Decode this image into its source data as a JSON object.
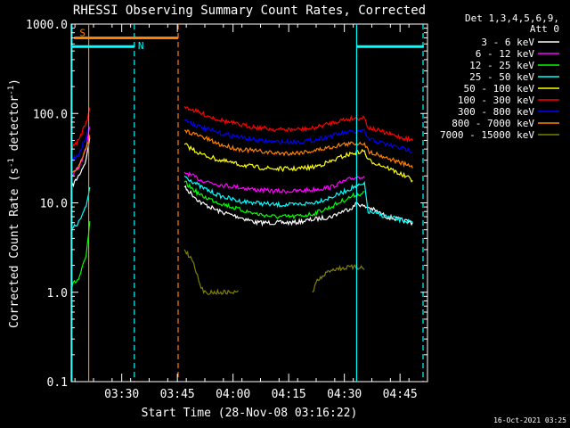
{
  "chart_data": {
    "type": "line",
    "title": "RHESSI Observing Summary Count Rates, Corrected",
    "xlabel": "Start Time (28-Nov-08 03:16:22)",
    "ylabel_main": "Corrected Count Rate (s",
    "ylabel_sup1": "-1",
    "ylabel_mid": " detector",
    "ylabel_sup2": "-1",
    "ylabel_end": ")",
    "y_scale": "log",
    "ylim": [
      0.1,
      1000
    ],
    "y_ticks": [
      {
        "value": 0.1,
        "label": "0.1"
      },
      {
        "value": 1,
        "label": "1.0"
      },
      {
        "value": 10,
        "label": "10.0"
      },
      {
        "value": 100,
        "label": "100.0"
      },
      {
        "value": 1000,
        "label": "1000.0"
      }
    ],
    "xlim_minutes": [
      0,
      96
    ],
    "x_ticks": [
      {
        "value": 13.6,
        "label": "03:30"
      },
      {
        "value": 28.6,
        "label": "03:45"
      },
      {
        "value": 43.6,
        "label": "04:00"
      },
      {
        "value": 58.6,
        "label": "04:15"
      },
      {
        "value": 73.6,
        "label": "04:30"
      },
      {
        "value": 88.6,
        "label": "04:45"
      }
    ],
    "legend_header": [
      "Det 1,3,4,5,6,9,",
      "Att 0"
    ],
    "series": [
      {
        "name": "3 - 6 keV",
        "color": "#ffffff",
        "x": [
          0,
          2,
          4,
          5,
          30.5,
          35,
          40,
          45,
          50,
          55,
          60,
          65,
          70,
          73,
          76,
          77,
          79,
          80,
          85,
          92
        ],
        "y": [
          15,
          20,
          30,
          55,
          15,
          10,
          8,
          7,
          6,
          6,
          6,
          6.5,
          7,
          8,
          9,
          10,
          9,
          9,
          7,
          6
        ]
      },
      {
        "name": "6 - 12 keV",
        "color": "#ff00ff",
        "x": [
          0,
          2,
          4,
          5,
          30.5,
          35,
          40,
          45,
          50,
          55,
          60,
          65,
          70,
          73,
          76,
          79
        ],
        "y": [
          20,
          25,
          40,
          70,
          22,
          18,
          16,
          15,
          14,
          13.5,
          13.5,
          14,
          15,
          17,
          19,
          20
        ]
      },
      {
        "name": "12 - 25 keV",
        "color": "#00ff00",
        "x": [
          0,
          2,
          4,
          5,
          30.5,
          35,
          40,
          45,
          50,
          55,
          60,
          65,
          70,
          73,
          76,
          79
        ],
        "y": [
          1.2,
          1.4,
          2.5,
          6,
          17,
          12,
          10,
          8.5,
          7.5,
          7,
          7,
          7.5,
          9,
          10.5,
          12,
          13
        ]
      },
      {
        "name": "25 - 50 keV",
        "color": "#00ffff",
        "x": [
          0,
          2,
          4,
          5,
          30.5,
          35,
          40,
          45,
          50,
          55,
          60,
          65,
          70,
          73,
          76,
          79,
          80,
          85,
          92
        ],
        "y": [
          5,
          6,
          9,
          15,
          20,
          15,
          12,
          10.5,
          10,
          9.5,
          9.5,
          10,
          11.5,
          13,
          15,
          16,
          8,
          7,
          6
        ]
      },
      {
        "name": "50 - 100 keV",
        "color": "#ffff00",
        "x": [
          30.5,
          35,
          40,
          45,
          50,
          55,
          60,
          65,
          70,
          73,
          76,
          79,
          80,
          85,
          92
        ],
        "y": [
          45,
          35,
          30,
          27,
          25,
          24,
          24,
          25,
          29,
          33,
          36,
          38,
          30,
          25,
          18
        ]
      },
      {
        "name": "100 - 300 keV",
        "color": "#ff0000",
        "x": [
          0,
          2,
          4,
          5,
          30.5,
          35,
          40,
          45,
          50,
          55,
          60,
          65,
          70,
          73,
          76,
          79,
          80,
          85,
          92
        ],
        "y": [
          40,
          50,
          80,
          110,
          120,
          100,
          85,
          75,
          70,
          66,
          66,
          68,
          78,
          85,
          88,
          90,
          70,
          60,
          50
        ]
      },
      {
        "name": "300 - 800 keV",
        "color": "#0000ff",
        "x": [
          0,
          2,
          4,
          5,
          30.5,
          35,
          40,
          45,
          50,
          55,
          60,
          65,
          70,
          73,
          76,
          79,
          80,
          85,
          92
        ],
        "y": [
          30,
          35,
          55,
          75,
          85,
          70,
          60,
          55,
          50,
          48,
          48,
          50,
          56,
          60,
          62,
          63,
          52,
          45,
          38
        ]
      },
      {
        "name": "800 - 7000 keV",
        "color": "#ff8000",
        "x": [
          0,
          2,
          4,
          5,
          30.5,
          35,
          40,
          45,
          50,
          55,
          60,
          65,
          70,
          73,
          76,
          79,
          80,
          85,
          92
        ],
        "y": [
          22,
          25,
          40,
          55,
          65,
          55,
          45,
          40,
          38,
          36,
          36,
          38,
          42,
          45,
          46,
          47,
          38,
          32,
          25
        ]
      },
      {
        "name": "7000 - 15000 keV",
        "color": "#808000",
        "x": [
          30.5,
          33,
          34,
          35,
          36,
          44,
          45,
          65,
          66,
          70,
          75,
          79
        ],
        "y": [
          3,
          2.2,
          1.5,
          1.1,
          1,
          1,
          1,
          1,
          1.3,
          1.8,
          1.9,
          1.9
        ]
      }
    ],
    "markers": [
      {
        "label": "S",
        "color": "#ff8000",
        "x_start": 0.8,
        "x_end": 28.8,
        "y": 700
      },
      {
        "label": "N",
        "color": "#00ffff",
        "x_start": 0,
        "x_end": 17.0,
        "y": 560
      },
      {
        "label": "",
        "color": "#00ffff",
        "x_start": 76.9,
        "x_end": 95.0,
        "y": 560
      }
    ],
    "vertical_lines": [
      {
        "x": 0.2,
        "color": "#00ffff",
        "dashed": false
      },
      {
        "x": 4.7,
        "color": "#ff8000",
        "dashed": false
      },
      {
        "x": 17.0,
        "color": "#00ffff",
        "dashed": true
      },
      {
        "x": 28.8,
        "color": "#ff8000",
        "dashed": true
      },
      {
        "x": 76.9,
        "color": "#00ffff",
        "dashed": false
      },
      {
        "x": 94.8,
        "color": "#00ffff",
        "dashed": true
      }
    ],
    "grid": false
  },
  "footer_date": "16-Oct-2021 03:25"
}
